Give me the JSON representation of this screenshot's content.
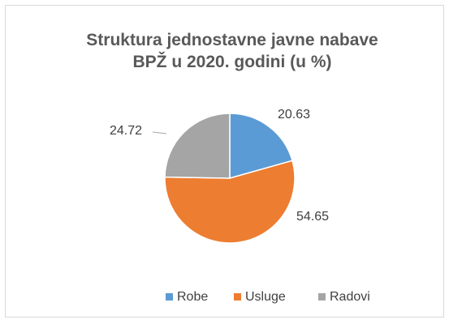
{
  "chart_data": {
    "type": "pie",
    "title": "Struktura jednostavne javne nabave BPŽ u 2020. godini (u %)",
    "categories": [
      "Robe",
      "Usluge",
      "Radovi"
    ],
    "values": [
      20.63,
      54.65,
      24.72
    ],
    "colors": [
      "#5b9bd5",
      "#ed7d31",
      "#a5a5a5"
    ],
    "legend": "bottom"
  }
}
